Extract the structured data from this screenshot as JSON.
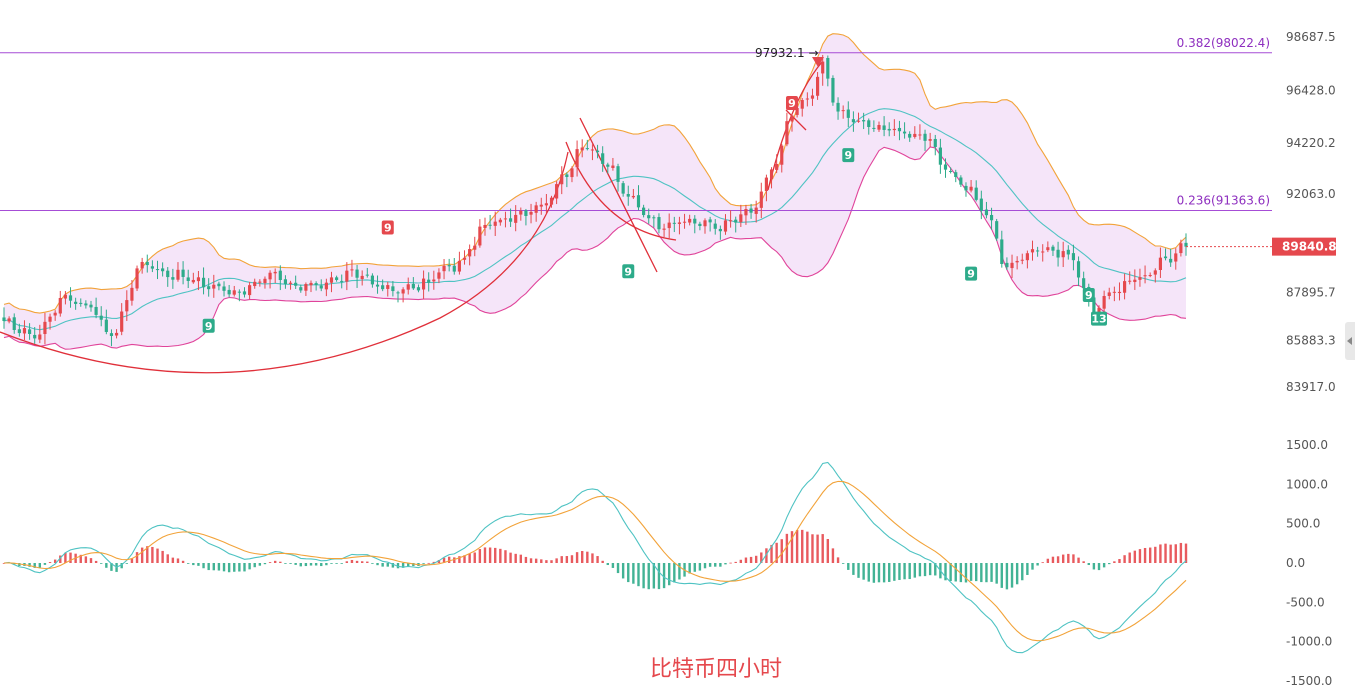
{
  "chart_data": [
    {
      "type": "candlestick",
      "title": "比特币四小时",
      "y_ticks": [
        "98687.5",
        "96428.0",
        "94220.2",
        "92063.0",
        "87895.7",
        "85883.3",
        "83917.0"
      ],
      "ylim": [
        83000,
        99200
      ],
      "last_price": "89840.8",
      "last_price_value": 89840.8,
      "peak_label": "97932.1 →",
      "peak_value": 97932.1,
      "fib_levels": [
        {
          "label": "0.382(98022.4)",
          "value": 98022.4
        },
        {
          "label": "0.236(91363.6)",
          "value": 91363.6
        }
      ],
      "td_markers": [
        {
          "label": "9",
          "bar": 75,
          "price": 90650,
          "side": "sell"
        },
        {
          "label": "9",
          "bar": 40,
          "price": 86500,
          "side": "buy"
        },
        {
          "label": "9",
          "bar": 122,
          "price": 88800,
          "side": "buy"
        },
        {
          "label": "9",
          "bar": 154,
          "price": 95900,
          "side": "sell"
        },
        {
          "label": "9",
          "bar": 165,
          "price": 93700,
          "side": "buy"
        },
        {
          "label": "9",
          "bar": 189,
          "price": 88700,
          "side": "buy"
        },
        {
          "label": "9",
          "bar": 212,
          "price": 87800,
          "side": "buy"
        },
        {
          "label": "13",
          "bar": 214,
          "price": 86800,
          "side": "buy"
        }
      ],
      "series": [
        {
          "name": "",
          "color": "#e5484d",
          "kind": "up-candle"
        },
        {
          "name": "",
          "color": "#2dab8a",
          "kind": "down-candle"
        },
        {
          "name": "",
          "color": "#f2a33a",
          "kind": "bollinger-upper"
        },
        {
          "name": "",
          "color": "#4fc3c3",
          "kind": "bollinger-middle"
        },
        {
          "name": "",
          "color": "#e0449a",
          "kind": "bollinger-lower"
        }
      ],
      "colors": {
        "up": "#e5484d",
        "down": "#2dab8a",
        "band_fill": "#f3e0f8",
        "fib": "#a64dd6",
        "arc": "#e0303a",
        "price_tag": "#e5484d"
      }
    },
    {
      "type": "histogram+line",
      "y_ticks": [
        "1500.0",
        "1000.0",
        "500.0",
        "0.0",
        "-500.0",
        "-1000.0",
        "-1500.0"
      ],
      "ylim": [
        -1500,
        1500
      ],
      "series": [
        {
          "name": "",
          "color": "#4fc3c3",
          "kind": "dif-line"
        },
        {
          "name": "",
          "color": "#f2a33a",
          "kind": "dea-line"
        },
        {
          "name": "",
          "color": "#e5484d",
          "kind": "positive-histogram"
        },
        {
          "name": "",
          "color": "#2dab8a",
          "kind": "negative-histogram"
        }
      ]
    }
  ]
}
